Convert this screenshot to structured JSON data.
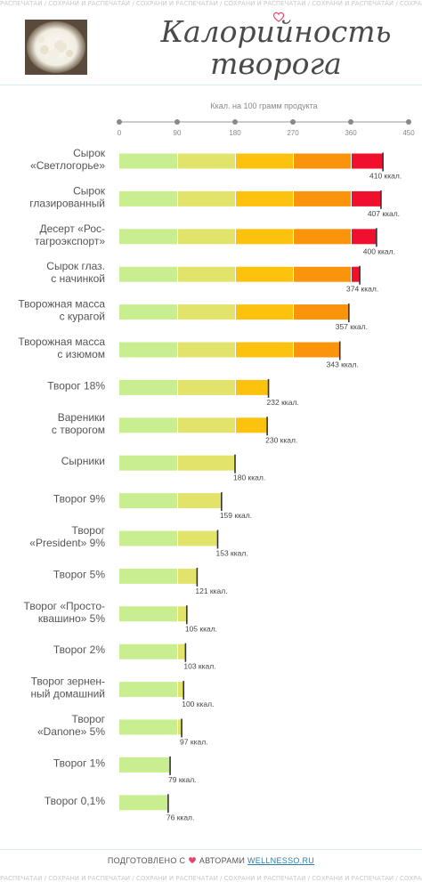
{
  "banner": {
    "repeat_text": "РАСПЕЧАТАЙ / СОХРАНИ И РАСПЕЧАТАЙ / СОХРАНИ И РАСПЕЧАТАЙ / СОХРАНИ И РАСПЕЧАТАЙ / СОХРАНИ И РАСПЕЧАТАЙ / СОХРАНИ И РАСПЕЧАТАЙ / СОХРАНИ И РАСПЕЧАТАЙ / СОХРАНИ И РАСПЕЧАТАЙ"
  },
  "header": {
    "title_line1": "Калорийность",
    "title_line2": "творога"
  },
  "colors": {
    "segments": [
      "#c9ee8f",
      "#e2e36a",
      "#fcc20e",
      "#f9940b",
      "#f0102e"
    ],
    "label_text": "#555555",
    "value_text": "#444444",
    "axis": "#9a9a9a",
    "heart": "#e8456c"
  },
  "chart_data": {
    "type": "bar",
    "orientation": "horizontal",
    "subtitle": "Ккал. на 100 грамм продукта",
    "x_ticks": [
      0,
      90,
      180,
      270,
      360,
      450
    ],
    "xlim": [
      0,
      450
    ],
    "categories": [
      [
        "Сырок",
        "«Светлогорье»"
      ],
      [
        "Сырок",
        "глазированный"
      ],
      [
        "Десерт «Рос-",
        "тагроэкспорт»"
      ],
      [
        "Сырок глаз.",
        "с начинкой"
      ],
      [
        "Творожная масса",
        "с курагой"
      ],
      [
        "Творожная масса",
        "с изюмом"
      ],
      [
        "Творог 18%"
      ],
      [
        "Вареники",
        "с творогом"
      ],
      [
        "Сырники"
      ],
      [
        "Творог 9%"
      ],
      [
        "Творог",
        "«President» 9%"
      ],
      [
        "Творог 5%"
      ],
      [
        "Творог «Просто-",
        "квашино» 5%"
      ],
      [
        "Творог 2%"
      ],
      [
        "Творог зернен-",
        "ный домашний"
      ],
      [
        "Творог",
        "«Danone» 5%"
      ],
      [
        "Творог 1%"
      ],
      [
        "Творог 0,1%"
      ]
    ],
    "values": [
      410,
      407,
      400,
      374,
      357,
      343,
      232,
      230,
      180,
      159,
      153,
      121,
      105,
      103,
      100,
      97,
      79,
      76
    ],
    "value_labels": [
      "410 ккал.",
      "407 ккал.",
      "400 ккал.",
      "374 ккал.",
      "357 ккал.",
      "343 ккал.",
      "232 ккал.",
      "230 ккал.",
      "180 ккал.",
      "159 ккал.",
      "153 ккал.",
      "121 ккал.",
      "105 ккал.",
      "103 ккал.",
      "100 ккал.",
      "97 ккал.",
      "79 ккал.",
      "76 ккал."
    ]
  },
  "footer": {
    "prefix": "ПОДГОТОВЛЕНО С",
    "middle": "АВТОРАМИ",
    "link": "WELLNESSO.RU"
  }
}
